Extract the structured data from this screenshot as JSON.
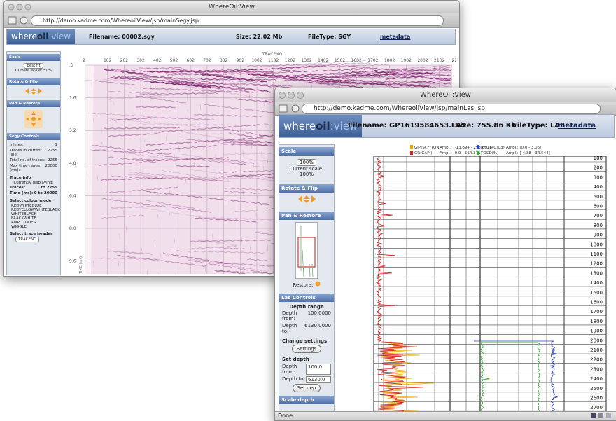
{
  "segy_window": {
    "title": "WhereOil:View",
    "url": "http://demo.kadme.com/WhereoilView/jsp/mainSegy.jsp",
    "logo": {
      "where": "where",
      "oil": "oil",
      ":view": ":view"
    },
    "header": {
      "filename": "Filename: 00002.sgy",
      "size": "Size: 22.02 Mb",
      "filetype": "FileType: SGY",
      "metadata": "metadata"
    },
    "sidebar": {
      "scale": {
        "heading": "Scale",
        "select": "best fit",
        "current": "Current scale: 50%"
      },
      "rotate_heading": "Rotate & Flip",
      "pan_heading": "Pan & Restore",
      "segy_controls": {
        "heading": "Segy Controls",
        "rows": [
          [
            "Inlines:",
            "1"
          ],
          [
            "Traces in current line:",
            "2255"
          ],
          [
            "Total no. of traces:",
            "2255"
          ],
          [
            "Max time range (ms):",
            "20000"
          ]
        ]
      },
      "trace_info": {
        "heading": "Trace info",
        "subheading": "Currently displaying:",
        "rows": [
          [
            "Traces:",
            "1 to 2255"
          ],
          [
            "Time (ms):",
            "0 to 20000"
          ]
        ]
      },
      "colour_mode": {
        "heading": "Select colour mode",
        "options": [
          "REDWHITEBLUE",
          "REDYELLOWWHITEBLACK",
          "WHITEBLACK",
          "BLACKWHITE",
          "AMPLITUDES",
          "WIGGLE"
        ]
      },
      "trace_header": {
        "heading": "Select trace header",
        "select": "TRACENO"
      }
    },
    "seismic": {
      "x_axis_label": "TRACENO",
      "x_ticks": [
        "2",
        "102",
        "202",
        "302",
        "402",
        "502",
        "602",
        "702",
        "802",
        "902",
        "1002",
        "1102",
        "1202",
        "1302",
        "1402",
        "1502",
        "1602",
        "1702",
        "1802",
        "1902",
        "2002",
        "2102",
        "225"
      ],
      "y_ticks": [
        ".0",
        "1.6",
        "3.2",
        "4.8",
        "6.4",
        "8.0",
        "9.6"
      ],
      "y_axis_label": "TIME (ms)"
    }
  },
  "las_window": {
    "title": "WhereOil:View",
    "url": "http://demo.kadme.com/WhereoilView/jsp/mainLas.jsp",
    "logo": {
      "where": "where",
      "oil": "oil",
      ":view": ":view"
    },
    "header": {
      "filename": "Filename: GP1619584653.LAS",
      "size": "Size: 755.86 Kb",
      "filetype": "FileType: LAS",
      "metadata": "metadata"
    },
    "sidebar": {
      "scale": {
        "heading": "Scale",
        "select": "100%",
        "current_label": "Current scale:",
        "current_value": "100%"
      },
      "rotate_heading": "Rotate & Flip",
      "pan_heading": "Pan & Restore",
      "restore": "Restore:",
      "las_controls": {
        "heading": "Las Controls",
        "depth_range": "Depth range",
        "rows": [
          [
            "Depth from:",
            "100.0000"
          ],
          [
            "Depth to:",
            "6130.0000"
          ]
        ]
      },
      "change_settings": {
        "heading": "Change settings",
        "button": "Settings"
      },
      "set_depth": {
        "heading": "Set depth",
        "rows": [
          [
            "Depth from:",
            "100.0"
          ],
          [
            "Depth to:",
            "6130.0"
          ]
        ],
        "button": "Set dep"
      },
      "scale_depth_heading": "Scale depth"
    },
    "legend": [
      {
        "name": "GIP(SCF/TON)",
        "range": "Ampl.: [-13.894 - 293.887]",
        "color": "#e8a800"
      },
      {
        "name": "GR(GAPI)",
        "range": "Ampl.: [0.0 - 514.371]",
        "color": "#d42020"
      },
      {
        "name": "RHOB(G/C3)",
        "range": "Ampl.: [0.0 - 3.06]",
        "color": "#2a44c0"
      },
      {
        "name": "TOCD(%)",
        "range": "Ampl.: [-4.38 - 34.544]",
        "color": "#44b044"
      }
    ],
    "depth_ticks": [
      100,
      200,
      300,
      400,
      500,
      600,
      700,
      800,
      900,
      1000,
      1100,
      1200,
      1300,
      1400,
      1500,
      1600,
      1700,
      1800,
      1900,
      2000,
      2100,
      2200,
      2300,
      2400,
      2500,
      2600,
      2700
    ],
    "status": "Done"
  }
}
